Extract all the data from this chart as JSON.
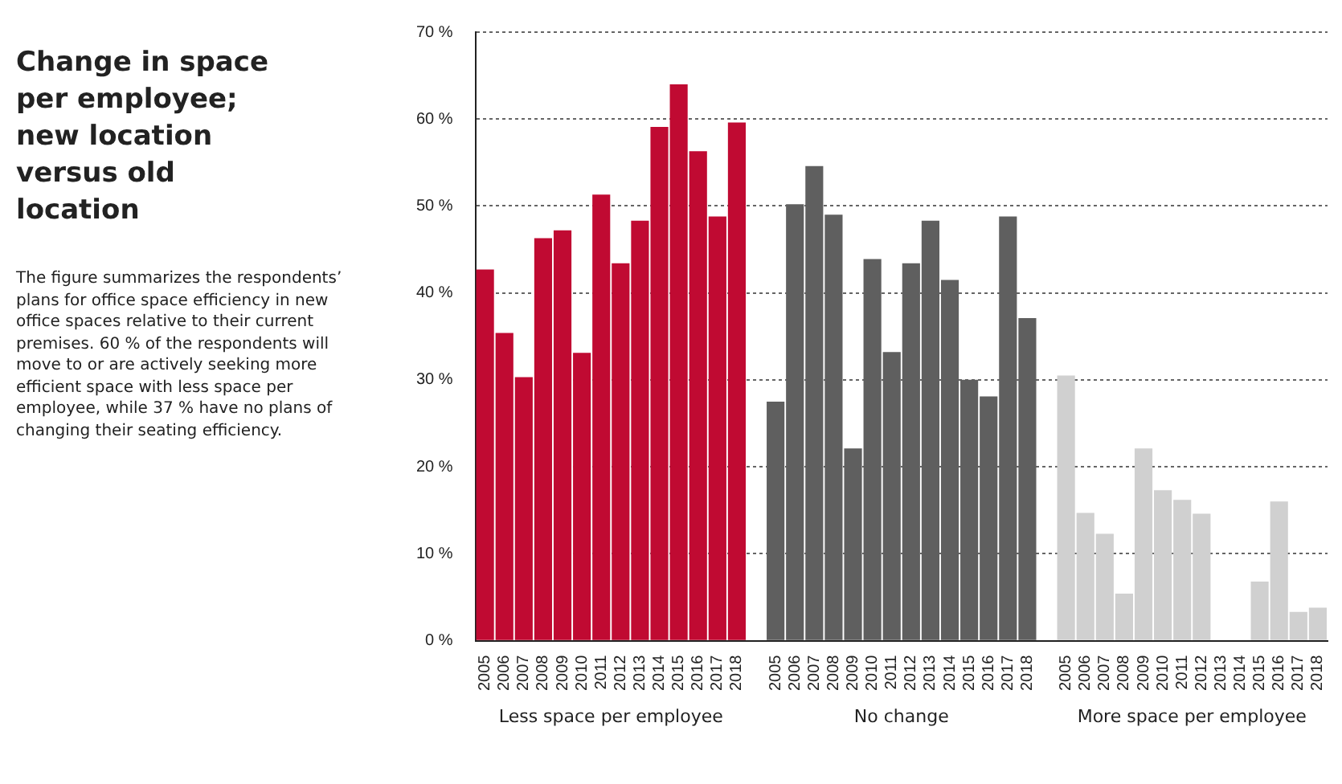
{
  "chart_data": {
    "type": "bar",
    "title": "Change in space per employee; new location versus old location",
    "subtitle": "The figure summarizes the respondents’ plans for office space efficiency in new office spaces relative to their current premises. 60 % of the respondents will move to or are actively seeking more efficient space with less space per employee, while 37 % have no plans of changing their seating efficiency.",
    "categories": [
      "2005",
      "2006",
      "2007",
      "2008",
      "2009",
      "2010",
      "2011",
      "2012",
      "2013",
      "2014",
      "2015",
      "2016",
      "2017",
      "2018",
      null,
      "2005",
      "2006",
      "2007",
      "2008",
      "2009",
      "2010",
      "2011",
      "2012",
      "2013",
      "2014",
      "2015",
      "2016",
      "2017",
      "2018",
      null,
      "2005",
      "2006",
      "2007",
      "2008",
      "2009",
      "2010",
      "2011",
      "2012",
      "2013",
      "2014",
      "2015",
      "2016",
      "2017",
      "2018"
    ],
    "series": [
      {
        "color": "#c00a32",
        "values": [
          42.7,
          35.4,
          30.3,
          46.3,
          47.2,
          33.1,
          51.3,
          43.4,
          48.3,
          59.1,
          64.0,
          56.3,
          48.8,
          59.6,
          null,
          null,
          null,
          null,
          null,
          null,
          null,
          null,
          null,
          null,
          null,
          null,
          null,
          null,
          null,
          null,
          null,
          null,
          null,
          null,
          null,
          null,
          null,
          null,
          null,
          null,
          null,
          null,
          null,
          null
        ]
      },
      {
        "color": "#5f5f5f",
        "values": [
          null,
          null,
          null,
          null,
          null,
          null,
          null,
          null,
          null,
          null,
          null,
          null,
          null,
          null,
          null,
          27.5,
          50.2,
          54.6,
          49.0,
          22.1,
          43.9,
          33.2,
          43.4,
          48.3,
          41.5,
          30.0,
          28.1,
          48.8,
          37.1,
          null,
          null,
          null,
          null,
          null,
          null,
          null,
          null,
          null,
          null,
          null,
          null,
          null,
          null,
          null
        ]
      },
      {
        "color": "#d0d0d0",
        "values": [
          null,
          null,
          null,
          null,
          null,
          null,
          null,
          null,
          null,
          null,
          null,
          null,
          null,
          null,
          null,
          null,
          null,
          null,
          null,
          null,
          null,
          null,
          null,
          null,
          null,
          null,
          null,
          null,
          null,
          null,
          30.5,
          14.7,
          12.3,
          5.4,
          22.1,
          17.3,
          16.2,
          14.6,
          0,
          0,
          6.8,
          16.0,
          3.3,
          3.8
        ]
      }
    ],
    "ylim": [
      0,
      70
    ],
    "yticks": [
      {
        "value": 0,
        "label": "0 %"
      },
      {
        "value": 10,
        "label": "10 %"
      },
      {
        "value": 20,
        "label": "20 %"
      },
      {
        "value": 30,
        "label": "30 %"
      },
      {
        "value": 40,
        "label": "40 %"
      },
      {
        "value": 50,
        "label": "50 %"
      },
      {
        "value": 60,
        "label": "60 %"
      },
      {
        "value": 70,
        "label": "70 %"
      }
    ],
    "annotations": [
      "Less space per employee",
      "No change",
      "More space per employee"
    ],
    "grid": "y"
  }
}
